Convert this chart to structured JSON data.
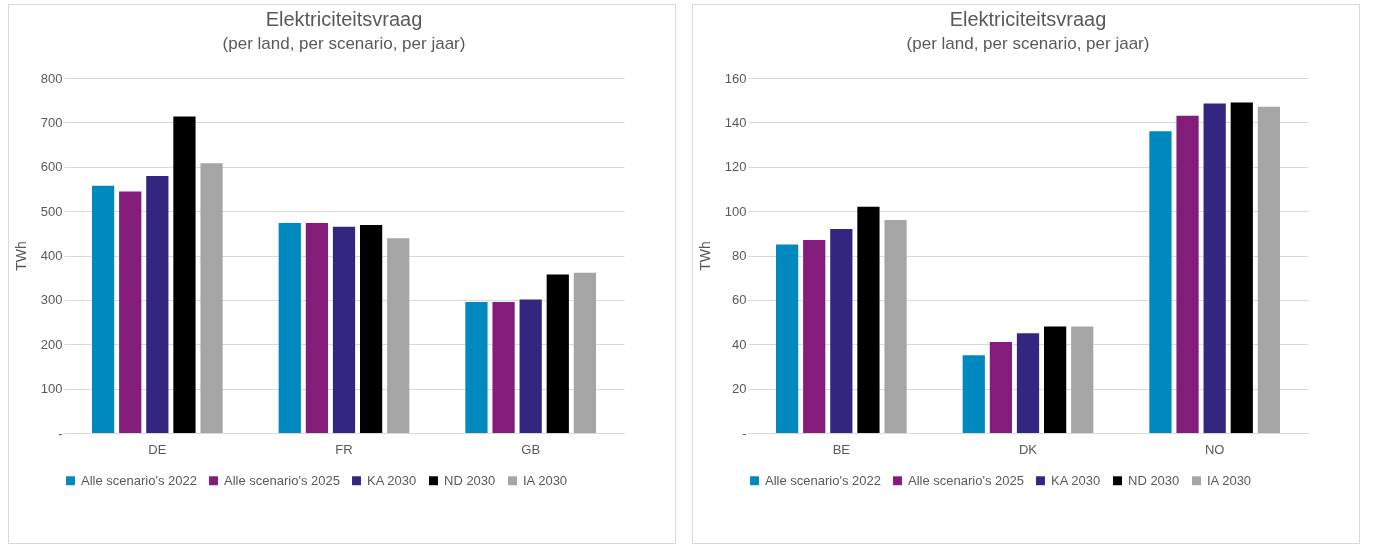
{
  "chart_data": [
    {
      "type": "bar",
      "title": "Elektriciteitsvraag",
      "subtitle": "(per land, per scenario, per jaar)",
      "ylabel": "TWh",
      "categories": [
        "DE",
        "FR",
        "GB"
      ],
      "series": [
        {
          "name": "Alle scenario's 2022",
          "color": "#0089bf",
          "values": [
            557,
            473,
            295
          ]
        },
        {
          "name": "Alle scenario's 2025",
          "color": "#841c7c",
          "values": [
            544,
            473,
            295
          ]
        },
        {
          "name": "KA 2030",
          "color": "#332680",
          "values": [
            579,
            465,
            301
          ]
        },
        {
          "name": "ND 2030",
          "color": "#000000",
          "values": [
            713,
            469,
            357
          ]
        },
        {
          "name": "IA 2030",
          "color": "#a5a5a5",
          "values": [
            608,
            439,
            361
          ]
        }
      ],
      "ylim": [
        0,
        800
      ],
      "yticks": [
        {
          "value": 0,
          "label": "-"
        },
        100,
        200,
        300,
        400,
        500,
        600,
        700,
        800
      ],
      "grid": "y",
      "legend": "bottom"
    },
    {
      "type": "bar",
      "title": "Elektriciteitsvraag",
      "subtitle": "(per land, per scenario, per jaar)",
      "ylabel": "TWh",
      "categories": [
        "BE",
        "DK",
        "NO"
      ],
      "series": [
        {
          "name": "Alle scenario's 2022",
          "color": "#0089bf",
          "values": [
            85,
            35,
            136
          ]
        },
        {
          "name": "Alle scenario's 2025",
          "color": "#841c7c",
          "values": [
            87,
            41,
            143
          ]
        },
        {
          "name": "KA 2030",
          "color": "#332680",
          "values": [
            92,
            45,
            148.5
          ]
        },
        {
          "name": "ND 2030",
          "color": "#000000",
          "values": [
            102,
            48,
            149
          ]
        },
        {
          "name": "IA 2030",
          "color": "#a5a5a5",
          "values": [
            96,
            48,
            147
          ]
        }
      ],
      "ylim": [
        0,
        160
      ],
      "yticks": [
        {
          "value": 0,
          "label": "-"
        },
        20,
        40,
        60,
        80,
        100,
        120,
        140,
        160
      ],
      "grid": "y",
      "legend": "bottom"
    }
  ]
}
